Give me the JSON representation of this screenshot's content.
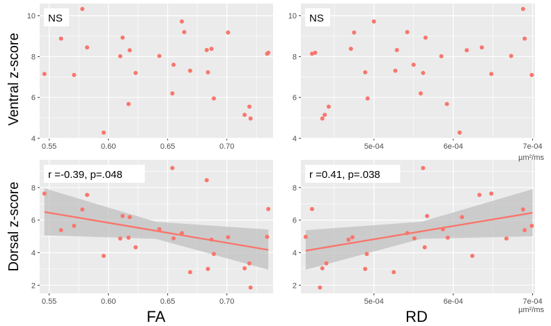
{
  "figure": {
    "ylabel_top": "Ventral z-score",
    "ylabel_bottom": "Dorsal z-score",
    "xlabel_left": "FA",
    "xlabel_right": "RD",
    "rd_unit": "µm²/ms"
  },
  "colors": {
    "point": "#F8766D",
    "line": "#F8766D",
    "panel_bg": "#EBEBEB",
    "grid": "#FFFFFF",
    "ribbon": "#BEBEBE"
  },
  "chart_data": [
    {
      "id": "ventral-fa",
      "type": "scatter",
      "annotation": "NS",
      "xlim": [
        0.542,
        0.739
      ],
      "ylim": [
        4.0,
        10.6
      ],
      "xticks": [
        0.55,
        0.6,
        0.65,
        0.7
      ],
      "xtick_labels": [
        "0.55",
        "0.60",
        "0.65",
        "0.70"
      ],
      "yticks": [
        4,
        6,
        8,
        10
      ],
      "ytick_labels": [
        "4",
        "6",
        "8",
        "10"
      ],
      "points": [
        [
          0.546,
          7.15
        ],
        [
          0.56,
          8.88
        ],
        [
          0.571,
          7.1
        ],
        [
          0.578,
          10.33
        ],
        [
          0.582,
          8.45
        ],
        [
          0.596,
          4.28
        ],
        [
          0.61,
          8.02
        ],
        [
          0.612,
          8.93
        ],
        [
          0.617,
          5.68
        ],
        [
          0.618,
          8.31
        ],
        [
          0.623,
          7.2
        ],
        [
          0.643,
          8.03
        ],
        [
          0.654,
          6.2
        ],
        [
          0.655,
          7.6
        ],
        [
          0.662,
          9.72
        ],
        [
          0.664,
          9.2
        ],
        [
          0.669,
          7.31
        ],
        [
          0.683,
          8.32
        ],
        [
          0.684,
          7.23
        ],
        [
          0.687,
          8.38
        ],
        [
          0.689,
          5.95
        ],
        [
          0.701,
          9.18
        ],
        [
          0.715,
          5.15
        ],
        [
          0.719,
          5.55
        ],
        [
          0.72,
          4.97
        ],
        [
          0.734,
          8.14
        ],
        [
          0.735,
          8.19
        ]
      ]
    },
    {
      "id": "ventral-rd",
      "type": "scatter",
      "annotation": "NS",
      "xlim": [
        0.000408,
        0.000703
      ],
      "ylim": [
        4.0,
        10.6
      ],
      "xticks": [
        0.0005,
        0.0006,
        0.0007
      ],
      "xtick_labels": [
        "5e-04",
        "6e-04",
        "7e-04"
      ],
      "yticks": [
        4,
        6,
        8,
        10
      ],
      "ytick_labels": [
        "4",
        "6",
        "8",
        "10"
      ],
      "points": [
        [
          0.000422,
          8.14
        ],
        [
          0.000426,
          8.19
        ],
        [
          0.000435,
          4.97
        ],
        [
          0.000438,
          5.15
        ],
        [
          0.000443,
          5.55
        ],
        [
          0.000471,
          8.38
        ],
        [
          0.000475,
          9.18
        ],
        [
          0.000489,
          7.23
        ],
        [
          0.000492,
          5.95
        ],
        [
          0.0005,
          9.72
        ],
        [
          0.000527,
          7.31
        ],
        [
          0.000529,
          8.32
        ],
        [
          0.000542,
          9.2
        ],
        [
          0.00055,
          7.6
        ],
        [
          0.000559,
          6.2
        ],
        [
          0.000562,
          7.2
        ],
        [
          0.000565,
          8.93
        ],
        [
          0.000585,
          8.02
        ],
        [
          0.000592,
          5.68
        ],
        [
          0.000608,
          4.28
        ],
        [
          0.000617,
          8.31
        ],
        [
          0.000636,
          8.45
        ],
        [
          0.000648,
          7.15
        ],
        [
          0.000673,
          8.03
        ],
        [
          0.000688,
          10.33
        ],
        [
          0.00069,
          8.88
        ],
        [
          0.000699,
          7.1
        ]
      ]
    },
    {
      "id": "dorsal-fa",
      "type": "scatter",
      "annotation": "r =-0.39, p=.048",
      "xlim": [
        0.542,
        0.739
      ],
      "ylim": [
        1.5,
        9.7
      ],
      "xticks": [
        0.55,
        0.6,
        0.65,
        0.7
      ],
      "xtick_labels": [
        "0.55",
        "0.60",
        "0.65",
        "0.70"
      ],
      "yticks": [
        2,
        4,
        6,
        8
      ],
      "ytick_labels": [
        "2",
        "4",
        "6",
        "8"
      ],
      "fit": {
        "x": [
          0.546,
          0.735
        ],
        "y": [
          6.5,
          4.17
        ]
      },
      "ribbon": {
        "x": [
          0.546,
          0.64,
          0.735
        ],
        "lower": [
          5.06,
          4.85,
          2.95
        ],
        "upper": [
          7.95,
          5.9,
          5.42
        ]
      },
      "points": [
        [
          0.546,
          7.63
        ],
        [
          0.56,
          5.38
        ],
        [
          0.571,
          5.65
        ],
        [
          0.578,
          6.65
        ],
        [
          0.582,
          7.55
        ],
        [
          0.596,
          3.8
        ],
        [
          0.61,
          4.87
        ],
        [
          0.612,
          6.25
        ],
        [
          0.617,
          4.92
        ],
        [
          0.618,
          6.18
        ],
        [
          0.623,
          4.33
        ],
        [
          0.643,
          5.44
        ],
        [
          0.654,
          9.2
        ],
        [
          0.655,
          4.88
        ],
        [
          0.662,
          5.2
        ],
        [
          0.669,
          2.8
        ],
        [
          0.683,
          8.45
        ],
        [
          0.684,
          3.0
        ],
        [
          0.687,
          4.8
        ],
        [
          0.689,
          3.92
        ],
        [
          0.701,
          4.95
        ],
        [
          0.715,
          3.04
        ],
        [
          0.719,
          3.34
        ],
        [
          0.72,
          1.86
        ],
        [
          0.734,
          4.97
        ],
        [
          0.735,
          6.68
        ]
      ]
    },
    {
      "id": "dorsal-rd",
      "type": "scatter",
      "annotation": "r =0.41, p=.038",
      "xlim": [
        0.000408,
        0.000703
      ],
      "ylim": [
        1.5,
        9.7
      ],
      "xticks": [
        0.0005,
        0.0006,
        0.0007
      ],
      "xtick_labels": [
        "5e-04",
        "6e-04",
        "7e-04"
      ],
      "yticks": [
        2,
        4,
        6,
        8
      ],
      "ytick_labels": [
        "2",
        "4",
        "6",
        "8"
      ],
      "fit": {
        "x": [
          0.000414,
          0.0007
        ],
        "y": [
          4.12,
          6.45
        ]
      },
      "ribbon": {
        "x": [
          0.000414,
          0.00056,
          0.0007
        ],
        "lower": [
          2.95,
          4.85,
          5.0
        ],
        "upper": [
          5.38,
          5.9,
          7.9
        ]
      },
      "points": [
        [
          0.000414,
          4.97
        ],
        [
          0.000422,
          6.68
        ],
        [
          0.000432,
          1.86
        ],
        [
          0.000435,
          3.04
        ],
        [
          0.00044,
          3.34
        ],
        [
          0.000468,
          4.8
        ],
        [
          0.000473,
          4.95
        ],
        [
          0.000489,
          3.0
        ],
        [
          0.000491,
          3.92
        ],
        [
          0.000525,
          2.8
        ],
        [
          0.000527,
          8.45
        ],
        [
          0.000542,
          5.2
        ],
        [
          0.000551,
          4.88
        ],
        [
          0.000562,
          9.2
        ],
        [
          0.000564,
          4.33
        ],
        [
          0.000567,
          6.25
        ],
        [
          0.000587,
          5.44
        ],
        [
          0.000593,
          4.92
        ],
        [
          0.000611,
          6.18
        ],
        [
          0.000624,
          3.8
        ],
        [
          0.000633,
          7.55
        ],
        [
          0.000648,
          7.63
        ],
        [
          0.000667,
          4.87
        ],
        [
          0.000688,
          6.65
        ],
        [
          0.00069,
          5.38
        ],
        [
          0.000699,
          5.65
        ]
      ]
    }
  ]
}
